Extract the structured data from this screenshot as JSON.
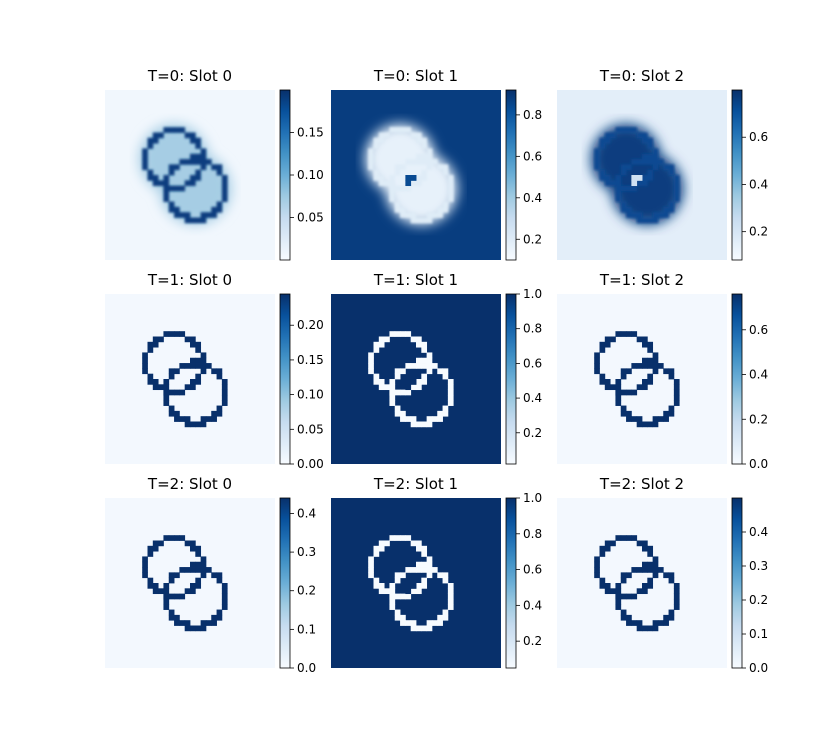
{
  "figure": {
    "colormap": "Blues",
    "background_color": "#ffffff",
    "panel_background_color": "#f7fbff",
    "outline_color": "#08306b"
  },
  "chart_data": [
    {
      "type": "heatmap",
      "title": "T=0: Slot 0",
      "colorbar_range": [
        0.0,
        0.2
      ],
      "colorbar_ticks": [
        "0.05",
        "0.10",
        "0.15"
      ],
      "bg_value": 0.03,
      "ring_value": 0.95,
      "blur": true,
      "blur_halo_value": 0.35,
      "blob_value": null
    },
    {
      "type": "heatmap",
      "title": "T=0: Slot 1",
      "colorbar_range": [
        0.1,
        0.92
      ],
      "colorbar_ticks": [
        "0.2",
        "0.4",
        "0.6",
        "0.8"
      ],
      "bg_value": 0.95,
      "ring_value": 0.12,
      "blur": true,
      "blur_halo_value": 0.08,
      "blob_value": 0.9
    },
    {
      "type": "heatmap",
      "title": "T=0: Slot 2",
      "colorbar_range": [
        0.08,
        0.8
      ],
      "colorbar_ticks": [
        "0.2",
        "0.4",
        "0.6"
      ],
      "bg_value": 0.1,
      "ring_value": 0.9,
      "blur": true,
      "blur_halo_value": 0.95,
      "blob_value": 0.2
    },
    {
      "type": "heatmap",
      "title": "T=1: Slot 0",
      "colorbar_range": [
        0.0,
        0.245
      ],
      "colorbar_ticks": [
        "0.00",
        "0.05",
        "0.10",
        "0.15",
        "0.20"
      ],
      "bg_value": 0.02,
      "ring_value": 1.0,
      "blur": false,
      "blob_value": null
    },
    {
      "type": "heatmap",
      "title": "T=1: Slot 1",
      "colorbar_range": [
        0.02,
        1.0
      ],
      "colorbar_ticks": [
        "0.2",
        "0.4",
        "0.6",
        "0.8",
        "1.0"
      ],
      "bg_value": 1.0,
      "ring_value": 0.0,
      "blur": false,
      "blob_value": 1.0
    },
    {
      "type": "heatmap",
      "title": "T=1: Slot 2",
      "colorbar_range": [
        0.0,
        0.76
      ],
      "colorbar_ticks": [
        "0.0",
        "0.2",
        "0.4",
        "0.6"
      ],
      "bg_value": 0.02,
      "ring_value": 1.0,
      "blur": false,
      "blob_value": null
    },
    {
      "type": "heatmap",
      "title": "T=2: Slot 0",
      "colorbar_range": [
        0.0,
        0.44
      ],
      "colorbar_ticks": [
        "0.0",
        "0.1",
        "0.2",
        "0.3",
        "0.4"
      ],
      "bg_value": 0.02,
      "ring_value": 1.0,
      "blur": false,
      "blob_value": null
    },
    {
      "type": "heatmap",
      "title": "T=2: Slot 1",
      "colorbar_range": [
        0.05,
        1.0
      ],
      "colorbar_ticks": [
        "0.2",
        "0.4",
        "0.6",
        "0.8",
        "1.0"
      ],
      "bg_value": 1.0,
      "ring_value": 0.0,
      "blur": false,
      "blob_value": 1.0
    },
    {
      "type": "heatmap",
      "title": "T=2: Slot 2",
      "colorbar_range": [
        0.0,
        0.5
      ],
      "colorbar_ticks": [
        "0.0",
        "0.1",
        "0.2",
        "0.3",
        "0.4"
      ],
      "bg_value": 0.02,
      "ring_value": 1.0,
      "blur": false,
      "blob_value": null
    }
  ]
}
